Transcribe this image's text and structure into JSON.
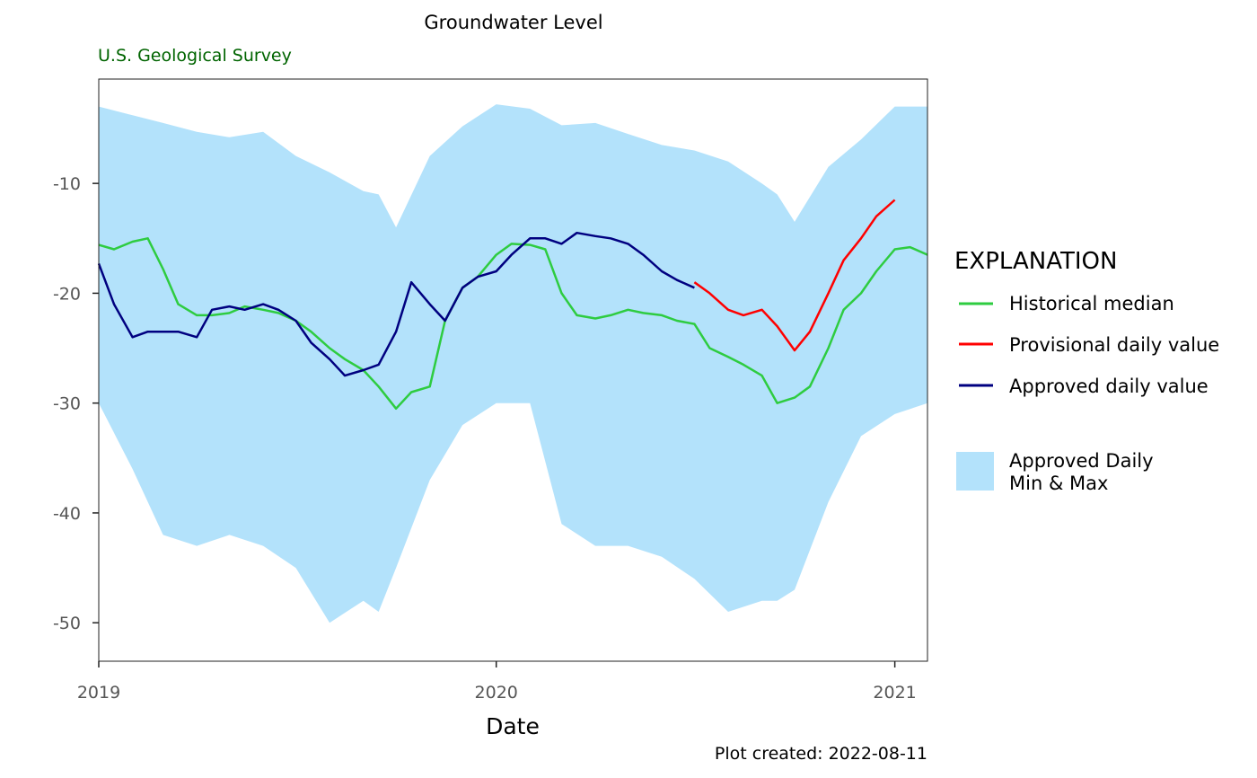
{
  "chart_data": {
    "type": "line",
    "title": "Groundwater Level",
    "subtitle": "U.S. Geological Survey",
    "xlabel": "Date",
    "ylabel": "",
    "caption": "Plot created: 2022-08-11",
    "x_axis": {
      "type": "date",
      "range": [
        "2019-01-01",
        "2021-01-31"
      ],
      "ticks": [
        "2019",
        "2020",
        "2021"
      ]
    },
    "y_axis": {
      "range": [
        -53.5,
        -0.5
      ],
      "ticks": [
        -10,
        -20,
        -30,
        -40,
        -50
      ],
      "tick_labels": [
        "-10",
        "-20",
        "-30",
        "-40",
        "-50"
      ]
    },
    "grid": false,
    "legend": {
      "title": "EXPLANATION",
      "placement": "right",
      "entries": [
        "Historical median",
        "Provisional daily value",
        "Approved daily value",
        "Approved Daily",
        "Min & Max"
      ]
    },
    "colors": {
      "band": "#b3e2fb",
      "median": "#2ecc40",
      "provisional": "#ff0000",
      "approved": "#000080",
      "subtitle": "#006400"
    },
    "series": [
      {
        "name": "Approved Daily Min & Max",
        "kind": "band",
        "x": [
          "2019-01-01",
          "2019-02-01",
          "2019-03-01",
          "2019-04-01",
          "2019-05-01",
          "2019-06-01",
          "2019-07-01",
          "2019-08-01",
          "2019-09-01",
          "2019-09-15",
          "2019-10-01",
          "2019-11-01",
          "2019-12-01",
          "2020-01-01",
          "2020-02-01",
          "2020-03-01",
          "2020-04-01",
          "2020-05-01",
          "2020-06-01",
          "2020-07-01",
          "2020-08-01",
          "2020-09-01",
          "2020-09-15",
          "2020-10-01",
          "2020-11-01",
          "2020-12-01",
          "2021-01-01",
          "2021-01-31"
        ],
        "upper": [
          -3,
          -3.8,
          -4.5,
          -5.3,
          -5.8,
          -5.3,
          -7.5,
          -9,
          -10.7,
          -11,
          -14,
          -7.5,
          -4.8,
          -2.8,
          -3.2,
          -4.7,
          -4.5,
          -5.5,
          -6.5,
          -7,
          -8,
          -10,
          -11,
          -13.5,
          -8.5,
          -6,
          -3,
          -3
        ],
        "lower": [
          -30,
          -36,
          -42,
          -43,
          -42,
          -43,
          -45,
          -50,
          -48,
          -49,
          -45,
          -37,
          -32,
          -30,
          -30,
          -41,
          -43,
          -43,
          -44,
          -46,
          -49,
          -48,
          -48,
          -47,
          -39,
          -33,
          -31,
          -30
        ]
      },
      {
        "name": "Historical median",
        "x": [
          "2019-01-01",
          "2019-01-15",
          "2019-02-01",
          "2019-02-15",
          "2019-03-01",
          "2019-03-15",
          "2019-04-01",
          "2019-04-15",
          "2019-05-01",
          "2019-05-15",
          "2019-06-01",
          "2019-06-15",
          "2019-07-01",
          "2019-07-15",
          "2019-08-01",
          "2019-08-15",
          "2019-09-01",
          "2019-09-15",
          "2019-10-01",
          "2019-10-15",
          "2019-11-01",
          "2019-11-15",
          "2019-12-01",
          "2019-12-15",
          "2020-01-01",
          "2020-01-15",
          "2020-02-01",
          "2020-02-15",
          "2020-03-01",
          "2020-03-15",
          "2020-04-01",
          "2020-04-15",
          "2020-05-01",
          "2020-05-15",
          "2020-06-01",
          "2020-06-15",
          "2020-07-01",
          "2020-07-15",
          "2020-08-01",
          "2020-08-15",
          "2020-09-01",
          "2020-09-15",
          "2020-10-01",
          "2020-10-15",
          "2020-11-01",
          "2020-11-15",
          "2020-12-01",
          "2020-12-15",
          "2021-01-01",
          "2021-01-15",
          "2021-01-31"
        ],
        "y": [
          -15.6,
          -16,
          -15.3,
          -15,
          -17.8,
          -21,
          -22,
          -22,
          -21.8,
          -21.2,
          -21.5,
          -21.8,
          -22.5,
          -23.5,
          -25,
          -26,
          -27,
          -28.5,
          -30.5,
          -29,
          -28.5,
          -22.5,
          -19.5,
          -18.5,
          -16.5,
          -15.5,
          -15.6,
          -16,
          -20,
          -22,
          -22.3,
          -22,
          -21.5,
          -21.8,
          -22,
          -22.5,
          -22.8,
          -25,
          -25.8,
          -26.5,
          -27.5,
          -30,
          -29.5,
          -28.5,
          -25,
          -21.5,
          -20,
          -18,
          -16,
          -15.8,
          -16.5
        ]
      },
      {
        "name": "Approved daily value",
        "x": [
          "2019-01-01",
          "2019-01-15",
          "2019-02-01",
          "2019-02-15",
          "2019-03-01",
          "2019-03-15",
          "2019-04-01",
          "2019-04-15",
          "2019-05-01",
          "2019-05-15",
          "2019-06-01",
          "2019-06-15",
          "2019-07-01",
          "2019-07-15",
          "2019-08-01",
          "2019-08-15",
          "2019-09-01",
          "2019-09-15",
          "2019-10-01",
          "2019-10-15",
          "2019-11-01",
          "2019-11-15",
          "2019-12-01",
          "2019-12-15",
          "2020-01-01",
          "2020-01-15",
          "2020-02-01",
          "2020-02-15",
          "2020-03-01",
          "2020-03-15",
          "2020-04-01",
          "2020-04-15",
          "2020-05-01",
          "2020-05-15",
          "2020-06-01",
          "2020-06-15",
          "2020-07-01"
        ],
        "y": [
          -17.3,
          -21,
          -24,
          -23.5,
          -23.5,
          -23.5,
          -24,
          -21.5,
          -21.2,
          -21.5,
          -21,
          -21.5,
          -22.5,
          -24.5,
          -26,
          -27.5,
          -27,
          -26.5,
          -23.5,
          -19,
          -21,
          -22.5,
          -19.5,
          -18.5,
          -18,
          -16.5,
          -15,
          -15,
          -15.5,
          -14.5,
          -14.8,
          -15,
          -15.5,
          -16.5,
          -18,
          -18.8,
          -19.5
        ]
      },
      {
        "name": "Provisional daily value",
        "x": [
          "2020-07-01",
          "2020-07-15",
          "2020-08-01",
          "2020-08-15",
          "2020-09-01",
          "2020-09-15",
          "2020-10-01",
          "2020-10-15",
          "2020-11-01",
          "2020-11-15",
          "2020-12-01",
          "2020-12-15",
          "2021-01-01"
        ],
        "y": [
          -19,
          -20,
          -21.5,
          -22,
          -21.5,
          -23,
          -25.2,
          -23.5,
          -20,
          -17,
          -15,
          -13,
          -11.5
        ]
      }
    ]
  }
}
